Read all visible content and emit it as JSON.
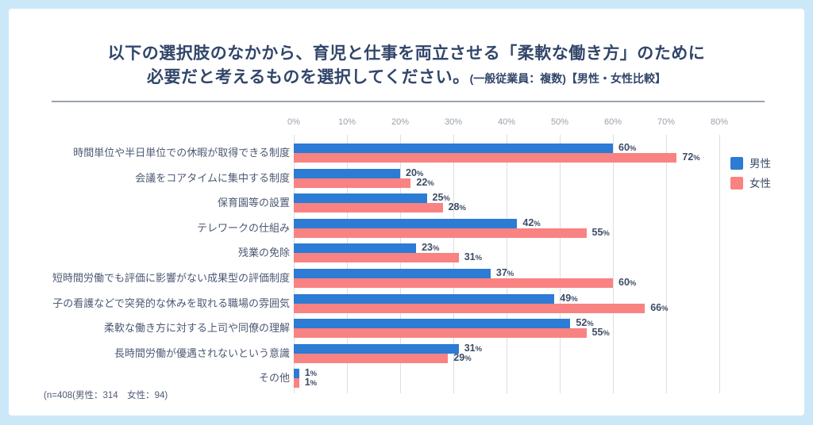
{
  "page": {
    "background_color": "#cbe8f9",
    "card_color": "#ffffff"
  },
  "title": {
    "line1": "以下の選択肢のなかから、育児と仕事を両立させる「柔軟な働き方」のために",
    "line2_main": "必要だと考えるものを選択してください。",
    "line2_note": "(一般従業員：複数)【男性・女性比較】"
  },
  "legend": [
    {
      "label": "男性",
      "color": "#2c7bd4"
    },
    {
      "label": "女性",
      "color": "#f98282"
    }
  ],
  "footnote": "(n=408(男性：314　女性：94)",
  "chart_data": {
    "type": "bar",
    "orientation": "horizontal",
    "unit": "%",
    "grid": true,
    "legend_position": "right",
    "xlim": [
      0,
      80
    ],
    "axis_ticks": [
      "0%",
      "10%",
      "20%",
      "30%",
      "40%",
      "50%",
      "60%",
      "70%",
      "80%"
    ],
    "categories": [
      "時間単位や半日単位での休暇が取得できる制度",
      "会議をコアタイムに集中する制度",
      "保育園等の設置",
      "テレワークの仕組み",
      "残業の免除",
      "短時間労働でも評価に影響がない成果型の評価制度",
      "子の看護などで突発的な休みを取れる職場の雰囲気",
      "柔軟な働き方に対する上司や同僚の理解",
      "長時間労働が優遇されないという意識",
      "その他"
    ],
    "series": [
      {
        "name": "男性",
        "color": "#2c7bd4",
        "values": [
          60,
          20,
          25,
          42,
          23,
          37,
          49,
          52,
          31,
          1
        ]
      },
      {
        "name": "女性",
        "color": "#f98282",
        "values": [
          72,
          22,
          28,
          55,
          31,
          60,
          66,
          55,
          29,
          1
        ]
      }
    ]
  }
}
